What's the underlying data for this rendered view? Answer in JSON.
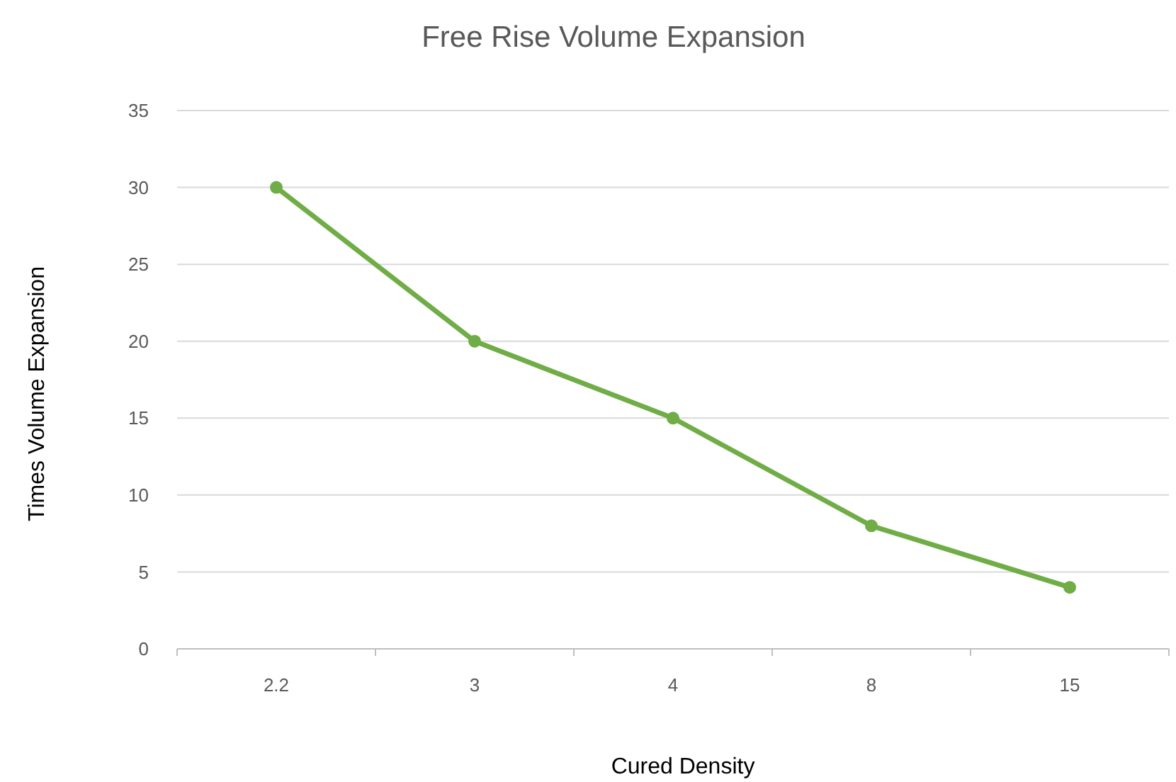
{
  "chart_data": {
    "type": "line",
    "title": "Free Rise Volume Expansion",
    "xlabel": "Cured Density",
    "ylabel": "Times Volume Expansion",
    "categories": [
      "2.2",
      "3",
      "4",
      "8",
      "15"
    ],
    "series": [
      {
        "color": "#70ad47",
        "values": [
          30,
          20,
          15,
          8,
          4
        ]
      }
    ],
    "ylim": [
      0,
      35
    ],
    "yticks": [
      0,
      5,
      10,
      15,
      20,
      25,
      30,
      35
    ],
    "grid": "y",
    "marker": "circle",
    "line_style": "solid"
  }
}
